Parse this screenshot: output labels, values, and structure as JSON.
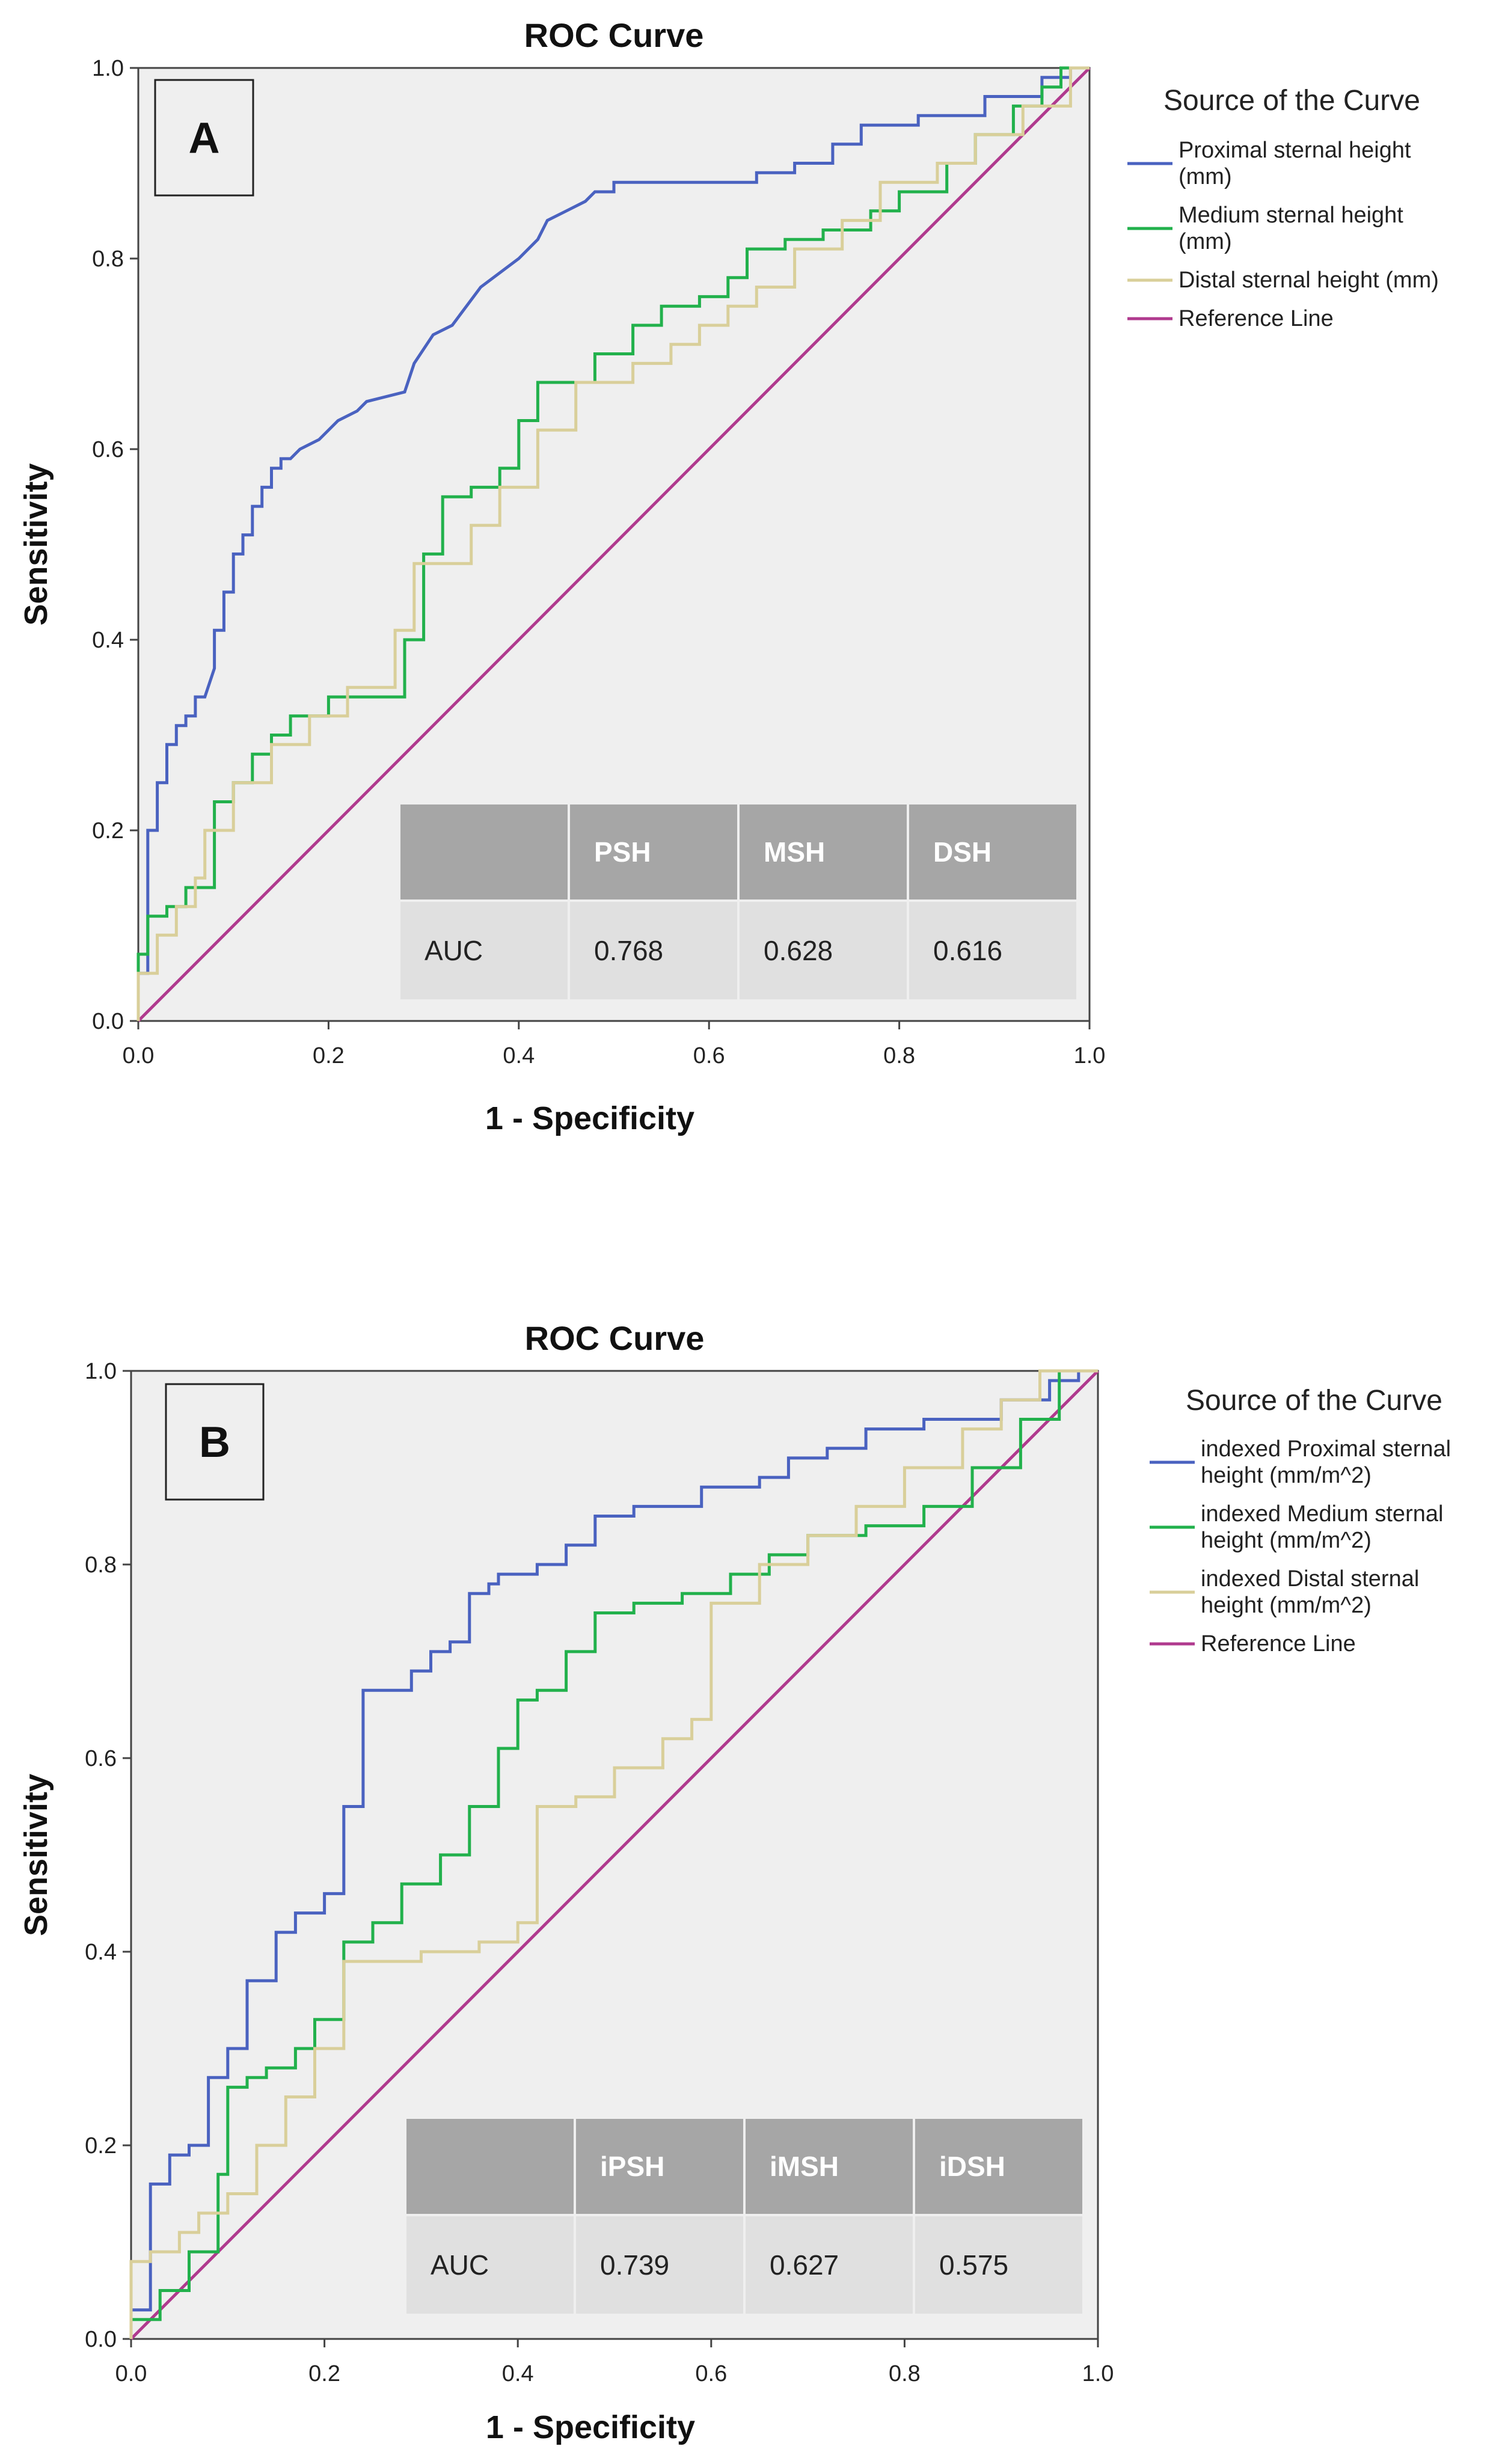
{
  "chart_data": [
    {
      "type": "line",
      "panel": "A",
      "title": "ROC Curve",
      "xlabel": "1 - Specificity",
      "ylabel": "Sensitivity",
      "xlim": [
        0,
        1
      ],
      "ylim": [
        0,
        1
      ],
      "xticks": [
        "0.0",
        "0.2",
        "0.4",
        "0.6",
        "0.8",
        "1.0"
      ],
      "yticks": [
        "0.0",
        "0.2",
        "0.4",
        "0.6",
        "0.8",
        "1.0"
      ],
      "grid": false,
      "legend_title": "Source of the Curve",
      "legend_position": "right",
      "series": [
        {
          "name": "Proximal sternal height (mm)",
          "legend_lines": [
            "Proximal sternal height",
            "(mm)"
          ],
          "color": "#4a62c0",
          "x": [
            0,
            0,
            0.01,
            0.01,
            0.02,
            0.02,
            0.03,
            0.03,
            0.04,
            0.04,
            0.05,
            0.05,
            0.06,
            0.06,
            0.07,
            0.08,
            0.08,
            0.09,
            0.09,
            0.1,
            0.1,
            0.11,
            0.11,
            0.12,
            0.12,
            0.13,
            0.13,
            0.14,
            0.14,
            0.15,
            0.15,
            0.16,
            0.17,
            0.17,
            0.19,
            0.19,
            0.21,
            0.21,
            0.23,
            0.23,
            0.24,
            0.24,
            0.28,
            0.28,
            0.29,
            0.29,
            0.31,
            0.31,
            0.33,
            0.33,
            0.36,
            0.36,
            0.4,
            0.4,
            0.42,
            0.42,
            0.43,
            0.43,
            0.45,
            0.45,
            0.47,
            0.47,
            0.48,
            0.48,
            0.5,
            0.5,
            0.55,
            0.55,
            0.65,
            0.65,
            0.69,
            0.69,
            0.73,
            0.73,
            0.76,
            0.76,
            0.82,
            0.82,
            0.89,
            0.89,
            0.95,
            0.95,
            0.98,
            0.98,
            1
          ],
          "y": [
            0,
            0.05,
            0.05,
            0.2,
            0.2,
            0.25,
            0.25,
            0.29,
            0.29,
            0.31,
            0.31,
            0.32,
            0.32,
            0.34,
            0.34,
            0.37,
            0.41,
            0.41,
            0.45,
            0.45,
            0.49,
            0.49,
            0.51,
            0.51,
            0.54,
            0.54,
            0.56,
            0.56,
            0.58,
            0.58,
            0.59,
            0.59,
            0.6,
            0.6,
            0.61,
            0.61,
            0.63,
            0.63,
            0.64,
            0.64,
            0.65,
            0.65,
            0.66,
            0.66,
            0.69,
            0.69,
            0.72,
            0.72,
            0.73,
            0.73,
            0.77,
            0.77,
            0.8,
            0.8,
            0.82,
            0.82,
            0.84,
            0.84,
            0.85,
            0.85,
            0.86,
            0.86,
            0.87,
            0.87,
            0.87,
            0.88,
            0.88,
            0.88,
            0.88,
            0.89,
            0.89,
            0.9,
            0.9,
            0.92,
            0.92,
            0.94,
            0.94,
            0.95,
            0.95,
            0.97,
            0.97,
            0.99,
            0.99,
            1,
            1
          ]
        },
        {
          "name": "Medium sternal height (mm)",
          "legend_lines": [
            "Medium sternal height",
            "(mm)"
          ],
          "color": "#22b14c",
          "x": [
            0,
            0,
            0.01,
            0.01,
            0.03,
            0.03,
            0.05,
            0.05,
            0.08,
            0.08,
            0.1,
            0.1,
            0.12,
            0.12,
            0.14,
            0.14,
            0.16,
            0.16,
            0.2,
            0.2,
            0.28,
            0.28,
            0.3,
            0.3,
            0.32,
            0.32,
            0.35,
            0.35,
            0.38,
            0.38,
            0.4,
            0.4,
            0.42,
            0.42,
            0.48,
            0.48,
            0.52,
            0.52,
            0.55,
            0.55,
            0.59,
            0.59,
            0.62,
            0.62,
            0.64,
            0.64,
            0.68,
            0.68,
            0.72,
            0.72,
            0.77,
            0.77,
            0.8,
            0.8,
            0.85,
            0.85,
            0.88,
            0.88,
            0.92,
            0.92,
            0.95,
            0.95,
            0.97,
            0.97,
            1
          ],
          "y": [
            0,
            0.07,
            0.07,
            0.11,
            0.11,
            0.12,
            0.12,
            0.14,
            0.14,
            0.23,
            0.23,
            0.25,
            0.25,
            0.28,
            0.28,
            0.3,
            0.3,
            0.32,
            0.32,
            0.34,
            0.34,
            0.4,
            0.4,
            0.49,
            0.49,
            0.55,
            0.55,
            0.56,
            0.56,
            0.58,
            0.58,
            0.63,
            0.63,
            0.67,
            0.67,
            0.7,
            0.7,
            0.73,
            0.73,
            0.75,
            0.75,
            0.76,
            0.76,
            0.78,
            0.78,
            0.81,
            0.81,
            0.82,
            0.82,
            0.83,
            0.83,
            0.85,
            0.85,
            0.87,
            0.87,
            0.9,
            0.9,
            0.93,
            0.93,
            0.96,
            0.96,
            0.98,
            0.98,
            1,
            1
          ]
        },
        {
          "name": "Distal sternal height (mm)",
          "legend_lines": [
            "Distal sternal height (mm)"
          ],
          "color": "#d9cf9a",
          "x": [
            0,
            0,
            0.02,
            0.02,
            0.04,
            0.04,
            0.06,
            0.06,
            0.07,
            0.07,
            0.1,
            0.1,
            0.14,
            0.14,
            0.18,
            0.18,
            0.22,
            0.22,
            0.27,
            0.27,
            0.29,
            0.29,
            0.35,
            0.35,
            0.38,
            0.38,
            0.42,
            0.42,
            0.46,
            0.46,
            0.52,
            0.52,
            0.56,
            0.56,
            0.59,
            0.59,
            0.62,
            0.62,
            0.65,
            0.65,
            0.69,
            0.69,
            0.74,
            0.74,
            0.78,
            0.78,
            0.84,
            0.84,
            0.88,
            0.88,
            0.93,
            0.93,
            0.98,
            0.98,
            1
          ],
          "y": [
            0,
            0.05,
            0.05,
            0.09,
            0.09,
            0.12,
            0.12,
            0.15,
            0.15,
            0.2,
            0.2,
            0.25,
            0.25,
            0.29,
            0.29,
            0.32,
            0.32,
            0.35,
            0.35,
            0.41,
            0.41,
            0.48,
            0.48,
            0.52,
            0.52,
            0.56,
            0.56,
            0.62,
            0.62,
            0.67,
            0.67,
            0.69,
            0.69,
            0.71,
            0.71,
            0.73,
            0.73,
            0.75,
            0.75,
            0.77,
            0.77,
            0.81,
            0.81,
            0.84,
            0.84,
            0.88,
            0.88,
            0.9,
            0.9,
            0.93,
            0.93,
            0.96,
            0.96,
            1,
            1
          ]
        },
        {
          "name": "Reference Line",
          "legend_lines": [
            "Reference Line"
          ],
          "color": "#b03a8e",
          "x": [
            0,
            1
          ],
          "y": [
            0,
            1
          ]
        }
      ],
      "auc_table": {
        "row_label": "AUC",
        "headers": [
          "PSH",
          "MSH",
          "DSH"
        ],
        "values": [
          "0.768",
          "0.628",
          "0.616"
        ]
      }
    },
    {
      "type": "line",
      "panel": "B",
      "title": "ROC Curve",
      "xlabel": "1 - Specificity",
      "ylabel": "Sensitivity",
      "xlim": [
        0,
        1
      ],
      "ylim": [
        0,
        1
      ],
      "xticks": [
        "0.0",
        "0.2",
        "0.4",
        "0.6",
        "0.8",
        "1.0"
      ],
      "yticks": [
        "0.0",
        "0.2",
        "0.4",
        "0.6",
        "0.8",
        "1.0"
      ],
      "grid": false,
      "legend_title": "Source of the Curve",
      "legend_position": "right",
      "series": [
        {
          "name": "indexed Proximal sternal height (mm/m^2)",
          "legend_lines": [
            "indexed Proximal sternal",
            "height (mm/m^2)"
          ],
          "color": "#4a62c0",
          "x": [
            0,
            0,
            0.02,
            0.02,
            0.04,
            0.04,
            0.06,
            0.06,
            0.08,
            0.08,
            0.1,
            0.1,
            0.12,
            0.12,
            0.15,
            0.15,
            0.17,
            0.17,
            0.2,
            0.2,
            0.22,
            0.22,
            0.24,
            0.24,
            0.29,
            0.29,
            0.31,
            0.31,
            0.33,
            0.33,
            0.35,
            0.35,
            0.37,
            0.37,
            0.38,
            0.38,
            0.42,
            0.42,
            0.45,
            0.45,
            0.48,
            0.48,
            0.52,
            0.52,
            0.59,
            0.59,
            0.65,
            0.65,
            0.68,
            0.68,
            0.72,
            0.72,
            0.76,
            0.76,
            0.82,
            0.82,
            0.9,
            0.9,
            0.95,
            0.95,
            0.98,
            0.98,
            1
          ],
          "y": [
            0,
            0.03,
            0.03,
            0.16,
            0.16,
            0.19,
            0.19,
            0.2,
            0.2,
            0.27,
            0.27,
            0.3,
            0.3,
            0.37,
            0.37,
            0.42,
            0.42,
            0.44,
            0.44,
            0.46,
            0.46,
            0.55,
            0.55,
            0.67,
            0.67,
            0.69,
            0.69,
            0.71,
            0.71,
            0.72,
            0.72,
            0.77,
            0.77,
            0.78,
            0.78,
            0.79,
            0.79,
            0.8,
            0.8,
            0.82,
            0.82,
            0.85,
            0.85,
            0.86,
            0.86,
            0.88,
            0.88,
            0.89,
            0.89,
            0.91,
            0.91,
            0.92,
            0.92,
            0.94,
            0.94,
            0.95,
            0.95,
            0.97,
            0.97,
            0.99,
            0.99,
            1,
            1
          ]
        },
        {
          "name": "indexed Medium sternal height (mm/m^2)",
          "legend_lines": [
            "indexed Medium sternal",
            "height (mm/m^2)"
          ],
          "color": "#22b14c",
          "x": [
            0,
            0,
            0.03,
            0.03,
            0.06,
            0.06,
            0.09,
            0.09,
            0.1,
            0.1,
            0.12,
            0.12,
            0.14,
            0.14,
            0.17,
            0.17,
            0.19,
            0.19,
            0.22,
            0.22,
            0.25,
            0.25,
            0.28,
            0.28,
            0.32,
            0.32,
            0.35,
            0.35,
            0.38,
            0.38,
            0.4,
            0.4,
            0.42,
            0.42,
            0.45,
            0.45,
            0.48,
            0.48,
            0.52,
            0.52,
            0.57,
            0.57,
            0.62,
            0.62,
            0.66,
            0.66,
            0.7,
            0.7,
            0.76,
            0.76,
            0.82,
            0.82,
            0.87,
            0.87,
            0.92,
            0.92,
            0.96,
            0.96,
            1
          ],
          "y": [
            0,
            0.02,
            0.02,
            0.05,
            0.05,
            0.09,
            0.09,
            0.17,
            0.17,
            0.26,
            0.26,
            0.27,
            0.27,
            0.28,
            0.28,
            0.3,
            0.3,
            0.33,
            0.33,
            0.41,
            0.41,
            0.43,
            0.43,
            0.47,
            0.47,
            0.5,
            0.5,
            0.55,
            0.55,
            0.61,
            0.61,
            0.66,
            0.66,
            0.67,
            0.67,
            0.71,
            0.71,
            0.75,
            0.75,
            0.76,
            0.76,
            0.77,
            0.77,
            0.79,
            0.79,
            0.81,
            0.81,
            0.83,
            0.83,
            0.84,
            0.84,
            0.86,
            0.86,
            0.9,
            0.9,
            0.95,
            0.95,
            1,
            1
          ]
        },
        {
          "name": "indexed Distal sternal height (mm/m^2)",
          "legend_lines": [
            "indexed Distal sternal",
            "height (mm/m^2)"
          ],
          "color": "#d9cf9a",
          "x": [
            0,
            0,
            0.02,
            0.02,
            0.05,
            0.05,
            0.07,
            0.07,
            0.1,
            0.1,
            0.13,
            0.13,
            0.16,
            0.16,
            0.19,
            0.19,
            0.22,
            0.22,
            0.3,
            0.3,
            0.36,
            0.36,
            0.4,
            0.4,
            0.42,
            0.42,
            0.46,
            0.46,
            0.5,
            0.5,
            0.55,
            0.55,
            0.58,
            0.58,
            0.6,
            0.6,
            0.65,
            0.65,
            0.7,
            0.7,
            0.75,
            0.75,
            0.8,
            0.8,
            0.86,
            0.86,
            0.9,
            0.9,
            0.94,
            0.94,
            1
          ],
          "y": [
            0,
            0.08,
            0.08,
            0.09,
            0.09,
            0.11,
            0.11,
            0.13,
            0.13,
            0.15,
            0.15,
            0.2,
            0.2,
            0.25,
            0.25,
            0.3,
            0.3,
            0.39,
            0.39,
            0.4,
            0.4,
            0.41,
            0.41,
            0.43,
            0.43,
            0.55,
            0.55,
            0.56,
            0.56,
            0.59,
            0.59,
            0.62,
            0.62,
            0.64,
            0.64,
            0.76,
            0.76,
            0.8,
            0.8,
            0.83,
            0.83,
            0.86,
            0.86,
            0.9,
            0.9,
            0.94,
            0.94,
            0.97,
            0.97,
            1,
            1
          ]
        },
        {
          "name": "Reference Line",
          "legend_lines": [
            "Reference Line"
          ],
          "color": "#b03a8e",
          "x": [
            0,
            1
          ],
          "y": [
            0,
            1
          ]
        }
      ],
      "auc_table": {
        "row_label": "AUC",
        "headers": [
          "iPSH",
          "iMSH",
          "iDSH"
        ],
        "values": [
          "0.739",
          "0.627",
          "0.575"
        ]
      }
    }
  ]
}
